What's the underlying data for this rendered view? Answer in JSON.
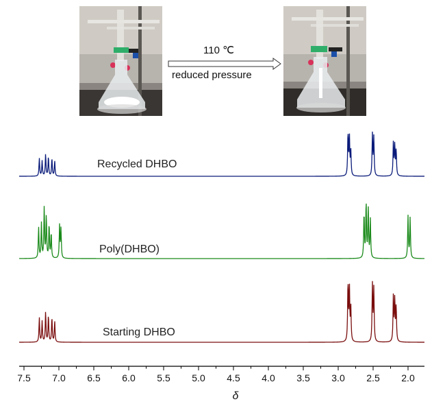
{
  "reaction": {
    "condition_top": "110 ℃",
    "condition_bottom": "reduced pressure",
    "photo_left": "flask-photo",
    "photo_right": "flask-photo"
  },
  "chart_data": {
    "type": "line",
    "title": "",
    "xlabel": "δ",
    "ylabel": "",
    "xlim": [
      7.5,
      1.75
    ],
    "x_reversed": true,
    "grid": false,
    "ticks": [
      7.5,
      7.0,
      6.5,
      6.0,
      5.5,
      5.0,
      4.5,
      4.0,
      3.5,
      3.0,
      2.5,
      2.0
    ],
    "tick_labels": [
      "7.5",
      "7.0",
      "6.5",
      "6.0",
      "5.5",
      "5.0",
      "4.5",
      "4.0",
      "3.5",
      "3.0",
      "2.5",
      "2.0"
    ],
    "series": [
      {
        "name": "Recycled DHBO",
        "color": "#0a1b7a",
        "peaks": [
          {
            "x": 7.28,
            "h": 0.42
          },
          {
            "x": 7.24,
            "h": 0.36
          },
          {
            "x": 7.19,
            "h": 0.52
          },
          {
            "x": 7.15,
            "h": 0.46
          },
          {
            "x": 7.1,
            "h": 0.42
          },
          {
            "x": 7.06,
            "h": 0.36
          },
          {
            "x": 2.86,
            "h": 1.0
          },
          {
            "x": 2.84,
            "h": 0.95
          },
          {
            "x": 2.82,
            "h": 0.6
          },
          {
            "x": 2.51,
            "h": 1.0
          },
          {
            "x": 2.49,
            "h": 0.9
          },
          {
            "x": 2.21,
            "h": 0.78
          },
          {
            "x": 2.19,
            "h": 0.72
          },
          {
            "x": 2.17,
            "h": 0.6
          }
        ]
      },
      {
        "name": "Poly(DHBO)",
        "color": "#1a8a1a",
        "peaks": [
          {
            "x": 7.29,
            "h": 0.55
          },
          {
            "x": 7.25,
            "h": 0.62
          },
          {
            "x": 7.21,
            "h": 0.9
          },
          {
            "x": 7.18,
            "h": 0.75
          },
          {
            "x": 7.14,
            "h": 0.6
          },
          {
            "x": 7.11,
            "h": 0.45
          },
          {
            "x": 6.99,
            "h": 0.58
          },
          {
            "x": 6.97,
            "h": 0.52
          },
          {
            "x": 2.63,
            "h": 0.8
          },
          {
            "x": 2.6,
            "h": 1.0
          },
          {
            "x": 2.57,
            "h": 0.9
          },
          {
            "x": 2.54,
            "h": 0.7
          },
          {
            "x": 2.0,
            "h": 0.75
          },
          {
            "x": 1.97,
            "h": 0.72
          }
        ]
      },
      {
        "name": "Starting DHBO",
        "color": "#7a0d0d",
        "peaks": [
          {
            "x": 7.28,
            "h": 0.42
          },
          {
            "x": 7.24,
            "h": 0.36
          },
          {
            "x": 7.19,
            "h": 0.52
          },
          {
            "x": 7.15,
            "h": 0.46
          },
          {
            "x": 7.1,
            "h": 0.42
          },
          {
            "x": 7.06,
            "h": 0.36
          },
          {
            "x": 2.86,
            "h": 1.0
          },
          {
            "x": 2.84,
            "h": 0.95
          },
          {
            "x": 2.82,
            "h": 0.6
          },
          {
            "x": 2.51,
            "h": 1.0
          },
          {
            "x": 2.49,
            "h": 0.9
          },
          {
            "x": 2.21,
            "h": 0.78
          },
          {
            "x": 2.19,
            "h": 0.72
          },
          {
            "x": 2.17,
            "h": 0.6
          }
        ]
      }
    ]
  }
}
